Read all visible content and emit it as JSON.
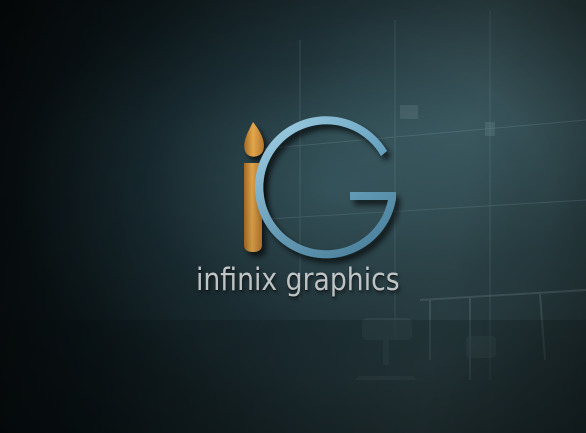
{
  "logo": {
    "brand_text": "infinix graphics",
    "monogram": "iG",
    "colors": {
      "brush": "#d89a3e",
      "letter_g": "#7fb6cf",
      "wordmark": "#d9dfe1",
      "wall": "#24383d"
    }
  },
  "scene": {
    "icons": [
      "paintbrush-icon",
      "office-chair",
      "desk",
      "window-frame"
    ]
  }
}
